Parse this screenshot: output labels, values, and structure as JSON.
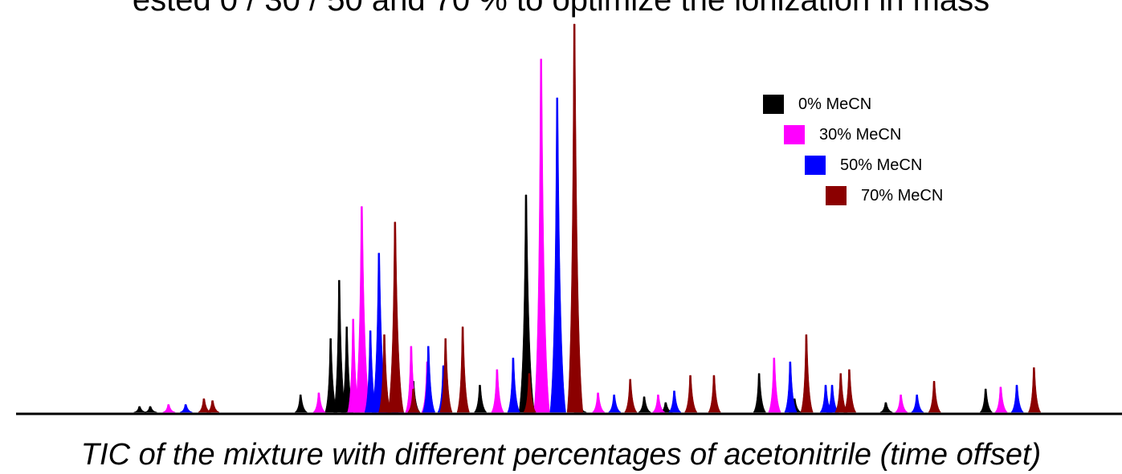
{
  "header_text": "ested 0 / 30 / 50 and 70 % to optimize the ionization in mass",
  "caption": "TIC of the mixture with different percentages of acetonitrile (time offset)",
  "chart_data": {
    "type": "line",
    "title": "",
    "xlabel": "",
    "ylabel": "",
    "x_range": [
      0,
      100
    ],
    "ylim": [
      0,
      100
    ],
    "grid": false,
    "legend_position": "top-right",
    "series": [
      {
        "name": "0% MeCN",
        "color": "#000000",
        "time_offset": 0,
        "peaks": [
          [
            8.5,
            1.5
          ],
          [
            9.5,
            1.5
          ],
          [
            23.5,
            4.5
          ],
          [
            26.3,
            19
          ],
          [
            27.1,
            34
          ],
          [
            27.8,
            22
          ],
          [
            32,
            6
          ],
          [
            34,
            8
          ],
          [
            40.2,
            7
          ],
          [
            44.5,
            56
          ],
          [
            49.5,
            2
          ],
          [
            55.5,
            4
          ],
          [
            57.5,
            2.5
          ],
          [
            66.2,
            10
          ],
          [
            69.5,
            3.5
          ],
          [
            78,
            2.5
          ],
          [
            87.3,
            6
          ]
        ]
      },
      {
        "name": "30% MeCN",
        "color": "#ff00ff",
        "time_offset": 1.5,
        "peaks": [
          [
            11.2,
            2
          ],
          [
            25.2,
            5
          ],
          [
            28.4,
            24
          ],
          [
            29.2,
            53
          ],
          [
            31.2,
            5
          ],
          [
            33.8,
            17
          ],
          [
            35.3,
            13
          ],
          [
            41.8,
            11
          ],
          [
            45.9,
            91
          ],
          [
            51.2,
            5
          ],
          [
            56.8,
            4.5
          ],
          [
            67.6,
            14
          ],
          [
            79.4,
            4.5
          ],
          [
            88.7,
            6.5
          ]
        ]
      },
      {
        "name": "50% MeCN",
        "color": "#0000ff",
        "time_offset": 3,
        "peaks": [
          [
            12.8,
            2
          ],
          [
            30,
            21
          ],
          [
            30.8,
            41
          ],
          [
            32.5,
            6
          ],
          [
            35.4,
            17
          ],
          [
            36.8,
            12
          ],
          [
            43.3,
            14
          ],
          [
            47.4,
            81
          ],
          [
            52.7,
            4.5
          ],
          [
            58.3,
            5.5
          ],
          [
            69.1,
            13
          ],
          [
            72.4,
            7
          ],
          [
            73,
            7
          ],
          [
            80.9,
            4.5
          ],
          [
            90.2,
            7
          ]
        ]
      },
      {
        "name": "70% MeCN",
        "color": "#8b0000",
        "time_offset": 4.5,
        "peaks": [
          [
            14.5,
            3.5
          ],
          [
            15.3,
            3
          ],
          [
            31.3,
            20
          ],
          [
            32.3,
            49
          ],
          [
            34,
            6
          ],
          [
            37,
            19
          ],
          [
            38.6,
            22
          ],
          [
            44.8,
            10
          ],
          [
            49,
            100
          ],
          [
            54.2,
            8.5
          ],
          [
            59.8,
            9.5
          ],
          [
            62,
            9.5
          ],
          [
            70.6,
            20
          ],
          [
            73.8,
            10
          ],
          [
            74.6,
            11
          ],
          [
            82.5,
            8
          ],
          [
            91.8,
            11.5
          ]
        ]
      }
    ]
  }
}
